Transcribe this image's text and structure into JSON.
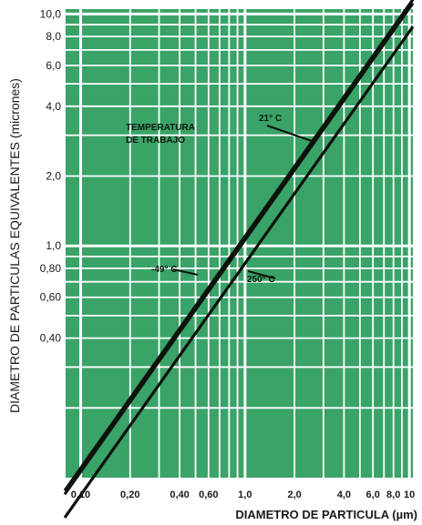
{
  "chart_data": {
    "type": "line",
    "xlabel": "DIAMETRO DE PARTICULA (µm)",
    "ylabel": "DIAMETRO DE PARTICULAS EQUIVALENTES (micrones)",
    "xscale": "log",
    "yscale": "log",
    "xlim": [
      0.08,
      10.5
    ],
    "ylim": [
      0.1,
      10.5
    ],
    "x_ticks": [
      0.1,
      0.2,
      0.4,
      0.6,
      1.0,
      2.0,
      4.0,
      6.0,
      8.0,
      10
    ],
    "x_tick_labels": [
      "0,10",
      "0,20",
      "0,40",
      "0,60",
      "1,0",
      "2,0",
      "4,0",
      "6,0",
      "8,0",
      "10"
    ],
    "y_ticks": [
      0.4,
      0.6,
      0.8,
      1.0,
      2.0,
      4.0,
      6.0,
      8.0,
      10.0
    ],
    "y_tick_labels": [
      "0,40",
      "0,60",
      "0,80",
      "1,0",
      "2,0",
      "4,0",
      "6,0",
      "8,0",
      "10,0"
    ],
    "x_grid": [
      0.08,
      0.1,
      0.2,
      0.3,
      0.4,
      0.5,
      0.6,
      0.7,
      0.8,
      0.9,
      1,
      2,
      3,
      4,
      5,
      6,
      7,
      8,
      9,
      10
    ],
    "y_grid": [
      0.2,
      0.3,
      0.4,
      0.5,
      0.6,
      0.7,
      0.8,
      0.9,
      1,
      2,
      3,
      4,
      5,
      6,
      7,
      8,
      9,
      10
    ],
    "grid": true,
    "background_color": "#3aa368",
    "grid_color": "#ffffff",
    "line_color": "#0c120c",
    "series": [
      {
        "name": "-49° C",
        "x": [
          0.08,
          10.5
        ],
        "y": [
          0.088,
          11.55
        ]
      },
      {
        "name": "21° C",
        "x": [
          0.08,
          10.5
        ],
        "y": [
          0.0848,
          11.13
        ]
      },
      {
        "name": "250° C",
        "x": [
          0.08,
          10.5
        ],
        "y": [
          0.0672,
          8.82
        ]
      }
    ],
    "annotations": [
      {
        "text_lines": [
          "TEMPERATURA",
          "DE TRABAJO"
        ]
      }
    ]
  }
}
